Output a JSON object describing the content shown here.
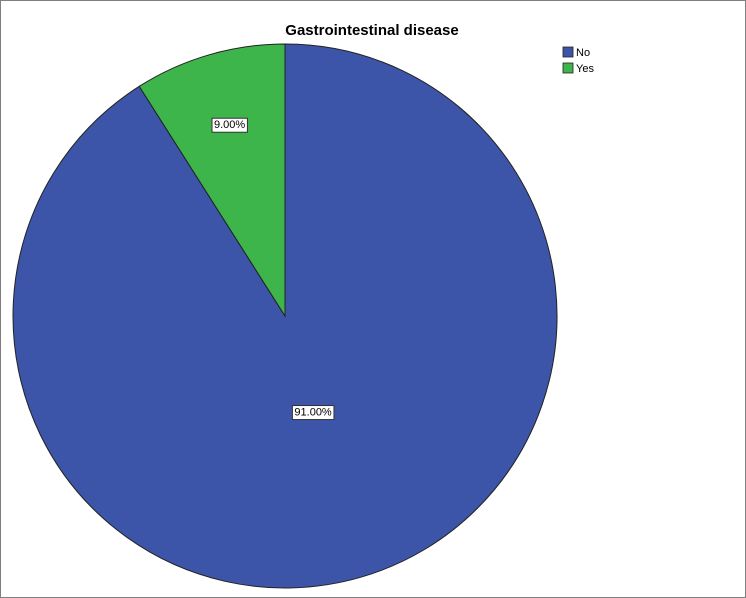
{
  "chart_data": {
    "type": "pie",
    "title": "Gastrointestinal disease",
    "categories": [
      "No",
      "Yes"
    ],
    "values": [
      91,
      9
    ],
    "value_labels": [
      "91.00%",
      "9.00%"
    ],
    "colors": [
      "#3c55a9",
      "#3db54a"
    ],
    "legend": "top-right"
  }
}
